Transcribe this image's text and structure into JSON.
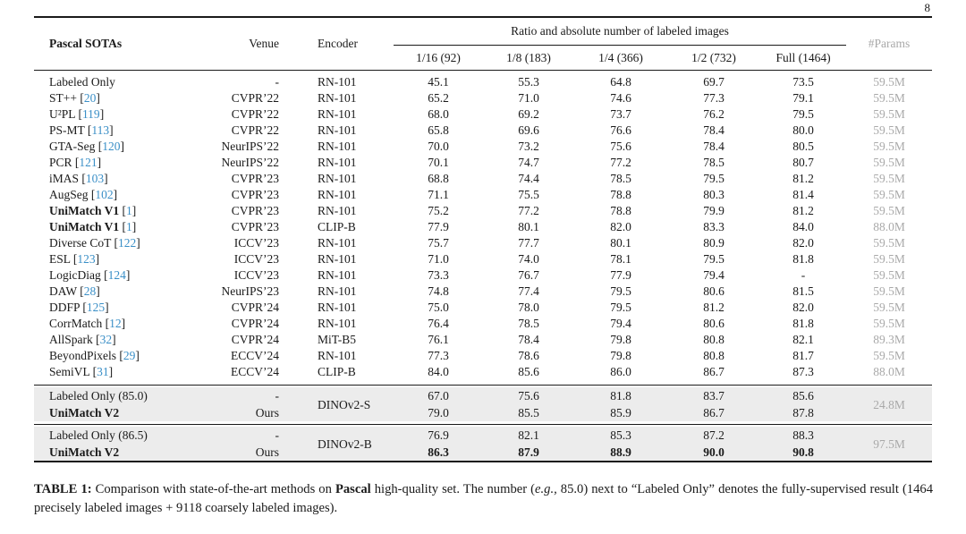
{
  "page": {
    "number": "8"
  },
  "colors": {
    "citation_link": "#3a8fc7",
    "params_gray": "#a9a9a9",
    "group_shade": "#ececec",
    "rule": "#1a1a1a"
  },
  "table": {
    "header": {
      "col_method": "Pascal SOTAs",
      "col_venue": "Venue",
      "col_encoder": "Encoder",
      "span_label": "Ratio and absolute number of labeled images",
      "subcols": [
        "1/16 (92)",
        "1/8 (183)",
        "1/4 (366)",
        "1/2 (732)",
        "Full (1464)"
      ],
      "col_params": "#Params"
    },
    "rows": [
      {
        "method": "Labeled Only",
        "cite": null,
        "bold": false,
        "venue": "-",
        "encoder": "RN-101",
        "values": [
          "45.1",
          "55.3",
          "64.8",
          "69.7",
          "73.5"
        ],
        "params": "59.5M"
      },
      {
        "method": "ST++",
        "cite": "20",
        "bold": false,
        "venue": "CVPR’22",
        "encoder": "RN-101",
        "values": [
          "65.2",
          "71.0",
          "74.6",
          "77.3",
          "79.1"
        ],
        "params": "59.5M"
      },
      {
        "method": "U²PL",
        "cite": "119",
        "bold": false,
        "venue": "CVPR’22",
        "encoder": "RN-101",
        "values": [
          "68.0",
          "69.2",
          "73.7",
          "76.2",
          "79.5"
        ],
        "params": "59.5M"
      },
      {
        "method": "PS-MT",
        "cite": "113",
        "bold": false,
        "venue": "CVPR’22",
        "encoder": "RN-101",
        "values": [
          "65.8",
          "69.6",
          "76.6",
          "78.4",
          "80.0"
        ],
        "params": "59.5M"
      },
      {
        "method": "GTA-Seg",
        "cite": "120",
        "bold": false,
        "venue": "NeurIPS’22",
        "encoder": "RN-101",
        "values": [
          "70.0",
          "73.2",
          "75.6",
          "78.4",
          "80.5"
        ],
        "params": "59.5M"
      },
      {
        "method": "PCR",
        "cite": "121",
        "bold": false,
        "venue": "NeurIPS’22",
        "encoder": "RN-101",
        "values": [
          "70.1",
          "74.7",
          "77.2",
          "78.5",
          "80.7"
        ],
        "params": "59.5M"
      },
      {
        "method": "iMAS",
        "cite": "103",
        "bold": false,
        "venue": "CVPR’23",
        "encoder": "RN-101",
        "values": [
          "68.8",
          "74.4",
          "78.5",
          "79.5",
          "81.2"
        ],
        "params": "59.5M"
      },
      {
        "method": "AugSeg",
        "cite": "102",
        "bold": false,
        "venue": "CVPR’23",
        "encoder": "RN-101",
        "values": [
          "71.1",
          "75.5",
          "78.8",
          "80.3",
          "81.4"
        ],
        "params": "59.5M"
      },
      {
        "method": "UniMatch V1",
        "cite": "1",
        "bold": true,
        "venue": "CVPR’23",
        "encoder": "RN-101",
        "values": [
          "75.2",
          "77.2",
          "78.8",
          "79.9",
          "81.2"
        ],
        "params": "59.5M"
      },
      {
        "method": "UniMatch V1",
        "cite": "1",
        "bold": true,
        "venue": "CVPR’23",
        "encoder": "CLIP-B",
        "values": [
          "77.9",
          "80.1",
          "82.0",
          "83.3",
          "84.0"
        ],
        "params": "88.0M"
      },
      {
        "method": "Diverse CoT",
        "cite": "122",
        "bold": false,
        "venue": "ICCV’23",
        "encoder": "RN-101",
        "values": [
          "75.7",
          "77.7",
          "80.1",
          "80.9",
          "82.0"
        ],
        "params": "59.5M"
      },
      {
        "method": "ESL",
        "cite": "123",
        "bold": false,
        "venue": "ICCV’23",
        "encoder": "RN-101",
        "values": [
          "71.0",
          "74.0",
          "78.1",
          "79.5",
          "81.8"
        ],
        "params": "59.5M"
      },
      {
        "method": "LogicDiag",
        "cite": "124",
        "bold": false,
        "venue": "ICCV’23",
        "encoder": "RN-101",
        "values": [
          "73.3",
          "76.7",
          "77.9",
          "79.4",
          "-"
        ],
        "params": "59.5M"
      },
      {
        "method": "DAW",
        "cite": "28",
        "bold": false,
        "venue": "NeurIPS’23",
        "encoder": "RN-101",
        "values": [
          "74.8",
          "77.4",
          "79.5",
          "80.6",
          "81.5"
        ],
        "params": "59.5M"
      },
      {
        "method": "DDFP",
        "cite": "125",
        "bold": false,
        "venue": "CVPR’24",
        "encoder": "RN-101",
        "values": [
          "75.0",
          "78.0",
          "79.5",
          "81.2",
          "82.0"
        ],
        "params": "59.5M"
      },
      {
        "method": "CorrMatch",
        "cite": "12",
        "bold": false,
        "venue": "CVPR’24",
        "encoder": "RN-101",
        "values": [
          "76.4",
          "78.5",
          "79.4",
          "80.6",
          "81.8"
        ],
        "params": "59.5M"
      },
      {
        "method": "AllSpark",
        "cite": "32",
        "bold": false,
        "venue": "CVPR’24",
        "encoder": "MiT-B5",
        "values": [
          "76.1",
          "78.4",
          "79.8",
          "80.8",
          "82.1"
        ],
        "params": "89.3M"
      },
      {
        "method": "BeyondPixels",
        "cite": "29",
        "bold": false,
        "venue": "ECCV’24",
        "encoder": "RN-101",
        "values": [
          "77.3",
          "78.6",
          "79.8",
          "80.8",
          "81.7"
        ],
        "params": "59.5M"
      },
      {
        "method": "SemiVL",
        "cite": "31",
        "bold": false,
        "venue": "ECCV’24",
        "encoder": "CLIP-B",
        "values": [
          "84.0",
          "85.6",
          "86.0",
          "86.7",
          "87.3"
        ],
        "params": "88.0M"
      }
    ],
    "groups": [
      {
        "encoder": "DINOv2-S",
        "params": "24.8M",
        "rows": [
          {
            "method": "Labeled Only (85.0)",
            "bold": false,
            "venue": "-",
            "values": [
              "67.0",
              "75.6",
              "81.8",
              "83.7",
              "85.6"
            ],
            "bold_values": false
          },
          {
            "method": "UniMatch V2",
            "bold": true,
            "venue": "Ours",
            "values": [
              "79.0",
              "85.5",
              "85.9",
              "86.7",
              "87.8"
            ],
            "bold_values": false
          }
        ]
      },
      {
        "encoder": "DINOv2-B",
        "params": "97.5M",
        "rows": [
          {
            "method": "Labeled Only (86.5)",
            "bold": false,
            "venue": "-",
            "values": [
              "76.9",
              "82.1",
              "85.3",
              "87.2",
              "88.3"
            ],
            "bold_values": false
          },
          {
            "method": "UniMatch V2",
            "bold": true,
            "venue": "Ours",
            "values": [
              "86.3",
              "87.9",
              "88.9",
              "90.0",
              "90.8"
            ],
            "bold_values": true
          }
        ]
      }
    ]
  },
  "caption": {
    "segments": [
      {
        "text": "TABLE 1: ",
        "style": "bold"
      },
      {
        "text": "Comparison with state-of-the-art methods on ",
        "style": ""
      },
      {
        "text": "Pascal",
        "style": "bold"
      },
      {
        "text": " high-quality set. The number (",
        "style": ""
      },
      {
        "text": "e.g.,",
        "style": "italic"
      },
      {
        "text": " 85.0) next to “Labeled Only” denotes the fully-supervised result (1464 precisely labeled images + 9118 coarsely labeled images).",
        "style": ""
      }
    ]
  }
}
